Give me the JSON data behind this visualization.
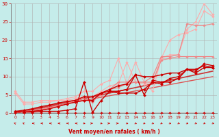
{
  "bg_color": "#c5ecea",
  "grid_color": "#b0b0b0",
  "xlabel": "Vent moyen/en rafales ( km/h )",
  "xlim": [
    -0.5,
    23.5
  ],
  "ylim": [
    0,
    30
  ],
  "xticks": [
    0,
    1,
    2,
    3,
    4,
    5,
    6,
    7,
    8,
    9,
    10,
    11,
    12,
    13,
    14,
    15,
    16,
    17,
    18,
    19,
    20,
    21,
    22,
    23
  ],
  "yticks": [
    0,
    5,
    10,
    15,
    20,
    25,
    30
  ],
  "series": [
    {
      "x": [
        0,
        1,
        2,
        3,
        4,
        5,
        6,
        7,
        8,
        9,
        10,
        11,
        12,
        13,
        14,
        15,
        16,
        17,
        18,
        19,
        20,
        21,
        22,
        23
      ],
      "y": [
        6.0,
        3.0,
        3.0,
        3.5,
        3.5,
        3.5,
        4.0,
        4.5,
        6.0,
        6.0,
        8.0,
        9.0,
        15.0,
        8.0,
        14.0,
        8.5,
        6.0,
        15.0,
        16.0,
        16.0,
        23.0,
        25.0,
        30.0,
        27.0
      ],
      "color": "#ffaaaa",
      "lw": 0.8,
      "marker": "D",
      "ms": 1.8
    },
    {
      "x": [
        0,
        1,
        2,
        3,
        4,
        5,
        6,
        7,
        8,
        9,
        10,
        11,
        12,
        13,
        14,
        15,
        16,
        17,
        18,
        19,
        20,
        21,
        22,
        23
      ],
      "y": [
        5.5,
        2.5,
        2.5,
        3.0,
        3.0,
        3.5,
        3.5,
        4.0,
        4.5,
        4.5,
        6.0,
        7.5,
        8.0,
        14.0,
        8.5,
        8.0,
        8.5,
        15.0,
        20.0,
        21.5,
        22.0,
        23.0,
        28.0,
        26.5
      ],
      "color": "#ffaaaa",
      "lw": 0.8,
      "marker": "D",
      "ms": 1.8
    },
    {
      "x": [
        0,
        1,
        2,
        3,
        4,
        5,
        6,
        7,
        8,
        9,
        10,
        11,
        12,
        13,
        14,
        15,
        16,
        17,
        18,
        19,
        20,
        21,
        22,
        23
      ],
      "y": [
        0.5,
        0.3,
        0.5,
        1.0,
        1.5,
        2.0,
        2.5,
        3.5,
        4.0,
        3.0,
        5.5,
        6.5,
        8.5,
        8.5,
        8.5,
        8.5,
        10.0,
        15.5,
        15.5,
        16.0,
        24.5,
        24.0,
        24.0,
        24.5
      ],
      "color": "#ee8888",
      "lw": 0.9,
      "marker": "D",
      "ms": 1.8
    },
    {
      "x": [
        0,
        1,
        2,
        3,
        4,
        5,
        6,
        7,
        8,
        9,
        10,
        11,
        12,
        13,
        14,
        15,
        16,
        17,
        18,
        19,
        20,
        21,
        22,
        23
      ],
      "y": [
        0.5,
        0.3,
        0.5,
        0.8,
        1.2,
        1.8,
        2.5,
        3.5,
        3.5,
        3.5,
        5.0,
        6.5,
        7.0,
        8.0,
        8.5,
        8.5,
        8.5,
        14.5,
        15.0,
        15.5,
        15.5,
        15.5,
        15.5,
        15.5
      ],
      "color": "#ee8888",
      "lw": 0.9,
      "marker": "D",
      "ms": 1.8
    },
    {
      "x": [
        0,
        1,
        2,
        3,
        4,
        5,
        6,
        7,
        8,
        9,
        10,
        11,
        12,
        13,
        14,
        15,
        16,
        17,
        18,
        19,
        20,
        21,
        22,
        23
      ],
      "y": [
        0.5,
        0.3,
        0.3,
        0.5,
        0.5,
        0.5,
        0.8,
        1.2,
        8.5,
        0.2,
        3.5,
        6.0,
        6.0,
        6.5,
        10.5,
        5.0,
        9.0,
        8.5,
        8.5,
        9.5,
        12.0,
        11.5,
        13.5,
        13.0
      ],
      "color": "#cc0000",
      "lw": 1.0,
      "marker": "D",
      "ms": 2.0
    },
    {
      "x": [
        0,
        1,
        2,
        3,
        4,
        5,
        6,
        7,
        8,
        9,
        10,
        11,
        12,
        13,
        14,
        15,
        16,
        17,
        18,
        19,
        20,
        21,
        22,
        23
      ],
      "y": [
        0.5,
        0.3,
        0.5,
        0.8,
        1.2,
        1.8,
        2.5,
        3.0,
        3.5,
        3.5,
        5.5,
        6.0,
        5.5,
        5.5,
        5.5,
        6.5,
        8.5,
        8.0,
        9.5,
        10.0,
        12.0,
        12.0,
        13.0,
        12.5
      ],
      "color": "#cc0000",
      "lw": 1.0,
      "marker": "D",
      "ms": 2.0
    },
    {
      "x": [
        0,
        1,
        2,
        3,
        4,
        5,
        6,
        7,
        8,
        9,
        10,
        11,
        12,
        13,
        14,
        15,
        16,
        17,
        18,
        19,
        20,
        21,
        22,
        23
      ],
      "y": [
        0.5,
        0.8,
        1.2,
        1.8,
        2.2,
        2.8,
        3.2,
        3.5,
        4.5,
        4.5,
        5.5,
        6.5,
        7.5,
        8.0,
        10.5,
        10.0,
        10.0,
        10.5,
        11.0,
        11.0,
        12.0,
        11.0,
        12.5,
        12.5
      ],
      "color": "#cc0000",
      "lw": 1.0,
      "marker": "D",
      "ms": 2.0
    },
    {
      "x": [
        0,
        1,
        2,
        3,
        4,
        5,
        6,
        7,
        8,
        9,
        10,
        11,
        12,
        13,
        14,
        15,
        16,
        17,
        18,
        19,
        20,
        21,
        22,
        23
      ],
      "y": [
        0,
        0,
        0,
        0,
        0,
        0,
        0,
        0,
        0,
        0,
        0,
        0,
        0,
        0,
        0,
        0,
        0,
        0,
        0,
        0,
        0,
        0,
        0,
        0
      ],
      "color": "#cc0000",
      "lw": 1.0,
      "marker": "D",
      "ms": 2.0
    },
    {
      "x": [
        0,
        23
      ],
      "y": [
        0,
        11.5
      ],
      "color": "#cc3333",
      "lw": 1.2,
      "marker": null,
      "ms": 0
    },
    {
      "x": [
        0,
        23
      ],
      "y": [
        0,
        10.0
      ],
      "color": "#dd5555",
      "lw": 1.0,
      "marker": null,
      "ms": 0
    }
  ],
  "arrow_angles": [
    225,
    225,
    270,
    270,
    270,
    270,
    270,
    270,
    45,
    90,
    45,
    90,
    90,
    45,
    45,
    45,
    45,
    45,
    45,
    45,
    45,
    45,
    45,
    45
  ],
  "tick_color": "#cc0000",
  "xlabel_color": "#cc0000"
}
